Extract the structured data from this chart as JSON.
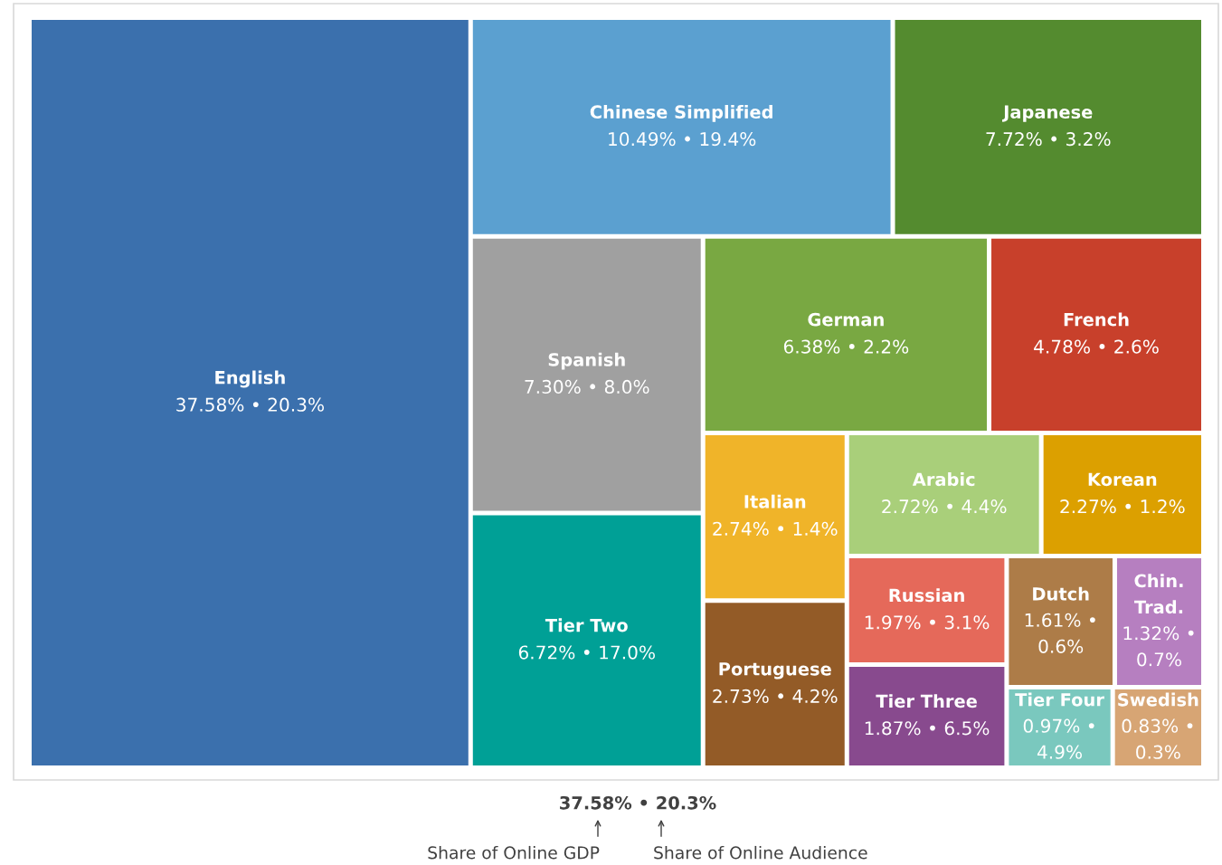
{
  "chart_data": {
    "type": "other",
    "categories": [
      "English",
      "Chinese Simplified",
      "Japanese",
      "Spanish",
      "Tier Two",
      "German",
      "French",
      "Italian",
      "Portuguese",
      "Arabic",
      "Korean",
      "Russian",
      "Tier Three",
      "Dutch",
      "Chin. Trad.",
      "Tier Four",
      "Swedish"
    ],
    "values": [
      37.58,
      10.49,
      7.72,
      7.3,
      6.72,
      6.38,
      4.78,
      2.74,
      2.73,
      2.72,
      2.27,
      1.97,
      1.87,
      1.61,
      1.32,
      0.97,
      0.83
    ],
    "value_labels": [
      "37.58% • 20.3%",
      "10.49% • 19.4%",
      "7.72% • 3.2%",
      "7.30% • 8.0%",
      "6.72% • 17.0%",
      "6.38% • 2.2%",
      "4.78% • 2.6%",
      "2.74% • 1.4%",
      "2.73% • 4.2%",
      "2.72% • 4.4%",
      "2.27% • 1.2%",
      "1.97% • 3.1%",
      "1.87% • 6.5%",
      "1.61% • 0.6%",
      "1.32% • 0.7%",
      "0.97% • 4.9%",
      "0.83% • 0.3%"
    ],
    "colors": [
      "#3b70ad",
      "#5ba0d0",
      "#548b2f",
      "#a0a0a0",
      "#00a096",
      "#79a842",
      "#c8402b",
      "#f0b429",
      "#935b27",
      "#a9cf7a",
      "#dca000",
      "#e5695a",
      "#884a8e",
      "#ad7c48",
      "#b67fc0",
      "#7ac8be",
      "#d7a574"
    ],
    "annotations": [
      "37.58% • 20.3%",
      "Share of Online GDP",
      "Share of Online Audience"
    ]
  }
}
